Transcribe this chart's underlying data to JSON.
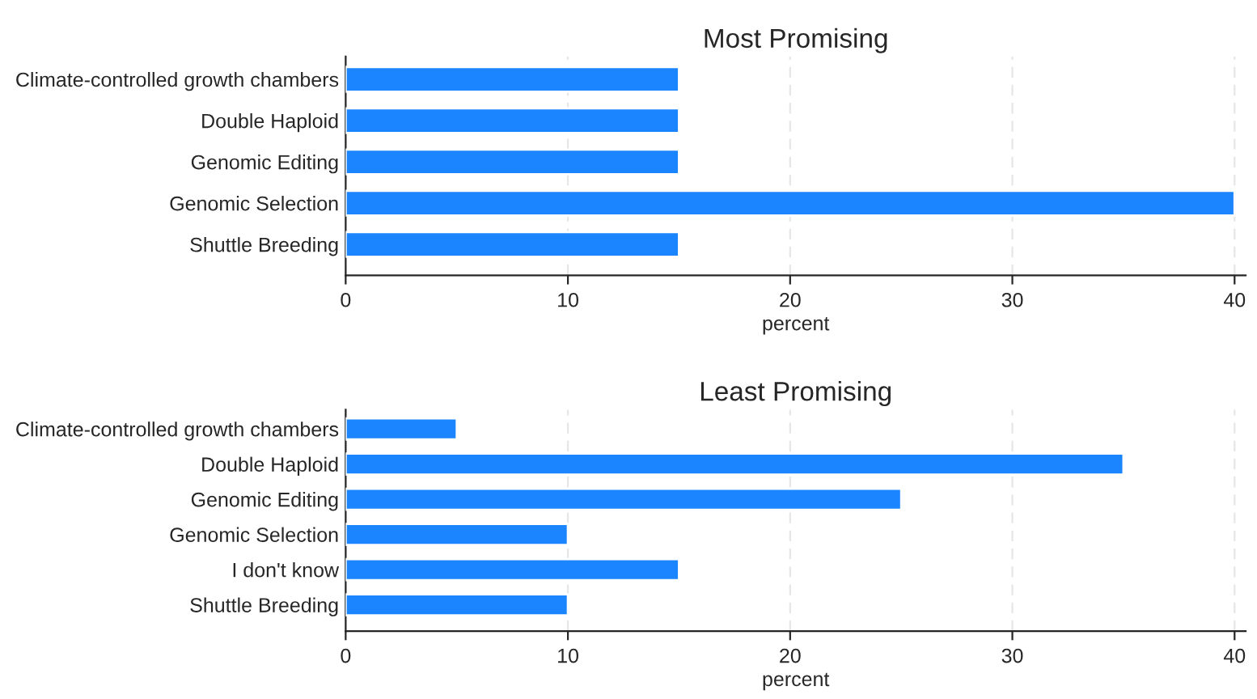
{
  "chart_data": [
    {
      "type": "bar",
      "orientation": "horizontal",
      "title": "Most Promising",
      "xlabel": "percent",
      "categories": [
        "Climate-controlled growth chambers",
        "Double Haploid",
        "Genomic Editing",
        "Genomic Selection",
        "Shuttle Breeding"
      ],
      "values": [
        15,
        15,
        15,
        40,
        15
      ],
      "color": "#1a85ff",
      "xlim": [
        0,
        40.5
      ],
      "xticks": [
        0,
        10,
        20,
        30,
        40
      ],
      "grid": "x",
      "legend": false
    },
    {
      "type": "bar",
      "orientation": "horizontal",
      "title": "Least Promising",
      "xlabel": "percent",
      "categories": [
        "Climate-controlled growth chambers",
        "Double Haploid",
        "Genomic Editing",
        "Genomic Selection",
        "I don't know",
        "Shuttle Breeding"
      ],
      "values": [
        5,
        35,
        25,
        10,
        15,
        10
      ],
      "color": "#1a85ff",
      "xlim": [
        0,
        40.5
      ],
      "xticks": [
        0,
        10,
        20,
        30,
        40
      ],
      "grid": "x",
      "legend": false
    }
  ]
}
